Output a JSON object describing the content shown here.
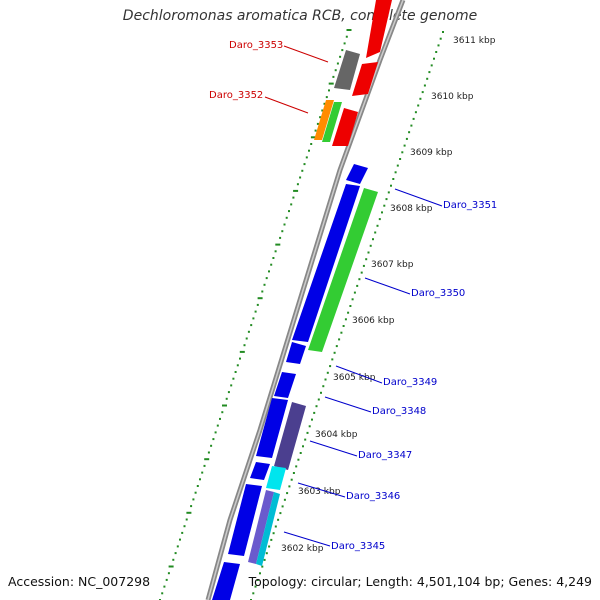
{
  "title": "Dechloromonas aromatica RCB, complete genome",
  "footer": {
    "accession": "Accession: NC_007298",
    "topology": "Topology: circular; Length: 4,501,104 bp; Genes: 4,249"
  },
  "ticks": [
    "3611 kbp",
    "3610 kbp",
    "3609 kbp",
    "3608 kbp",
    "3607 kbp",
    "3606 kbp",
    "3605 kbp",
    "3604 kbp",
    "3603 kbp",
    "3602 kbp"
  ],
  "labels": {
    "highlighted": [
      "Daro_3353",
      "Daro_3352"
    ],
    "genes": [
      "Daro_3351",
      "Daro_3350",
      "Daro_3349",
      "Daro_3348",
      "Daro_3347",
      "Daro_3346",
      "Daro_3345"
    ]
  },
  "colors": {
    "highlight_label": "#cc0000",
    "gene_label": "#0000cc",
    "backbone": "#888888",
    "dots": "#228b22",
    "blue": "#0000e6",
    "green": "#33cc33",
    "red": "#ee0000",
    "gray": "#666666",
    "purple": "#4b3f8f",
    "cyan": "#00e5ee",
    "orange": "#ff8c00"
  }
}
